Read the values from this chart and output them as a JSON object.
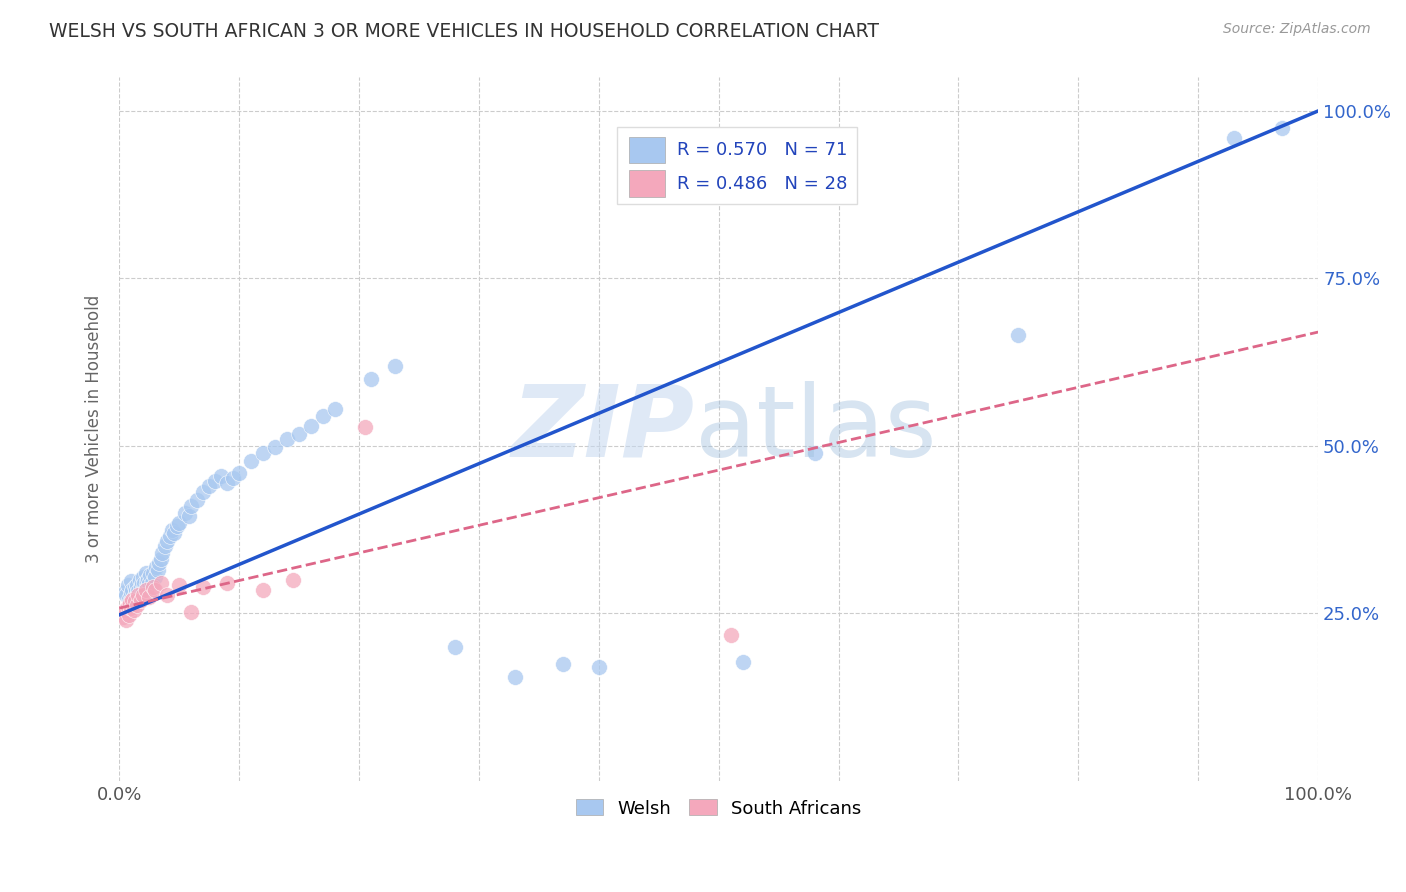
{
  "title": "WELSH VS SOUTH AFRICAN 3 OR MORE VEHICLES IN HOUSEHOLD CORRELATION CHART",
  "source": "Source: ZipAtlas.com",
  "ylabel": "3 or more Vehicles in Household",
  "xlim": [
    0.0,
    1.0
  ],
  "ylim": [
    0.0,
    1.05
  ],
  "grid_color": "#cccccc",
  "background_color": "#ffffff",
  "welsh_color": "#A8C8F0",
  "sa_color": "#F4A8BC",
  "welsh_line_color": "#2255CC",
  "sa_line_color": "#DD6688",
  "welsh_r": 0.57,
  "welsh_n": 71,
  "sa_r": 0.486,
  "sa_n": 28,
  "welsh_x": [
    0.005,
    0.006,
    0.007,
    0.008,
    0.009,
    0.01,
    0.01,
    0.011,
    0.012,
    0.013,
    0.014,
    0.015,
    0.015,
    0.016,
    0.017,
    0.018,
    0.019,
    0.02,
    0.02,
    0.021,
    0.022,
    0.022,
    0.023,
    0.024,
    0.025,
    0.026,
    0.027,
    0.028,
    0.03,
    0.031,
    0.032,
    0.033,
    0.035,
    0.036,
    0.038,
    0.04,
    0.042,
    0.044,
    0.046,
    0.048,
    0.05,
    0.055,
    0.058,
    0.06,
    0.065,
    0.07,
    0.075,
    0.08,
    0.085,
    0.09,
    0.095,
    0.1,
    0.11,
    0.12,
    0.13,
    0.14,
    0.15,
    0.16,
    0.17,
    0.18,
    0.21,
    0.23,
    0.28,
    0.33,
    0.37,
    0.4,
    0.52,
    0.58,
    0.75,
    0.93,
    0.97
  ],
  "welsh_y": [
    0.282,
    0.278,
    0.292,
    0.271,
    0.268,
    0.28,
    0.298,
    0.285,
    0.275,
    0.29,
    0.285,
    0.278,
    0.292,
    0.284,
    0.3,
    0.29,
    0.295,
    0.285,
    0.305,
    0.295,
    0.288,
    0.31,
    0.298,
    0.302,
    0.295,
    0.308,
    0.295,
    0.31,
    0.305,
    0.32,
    0.315,
    0.325,
    0.332,
    0.34,
    0.35,
    0.358,
    0.365,
    0.375,
    0.37,
    0.38,
    0.385,
    0.4,
    0.395,
    0.41,
    0.42,
    0.432,
    0.44,
    0.448,
    0.455,
    0.445,
    0.452,
    0.46,
    0.478,
    0.49,
    0.498,
    0.51,
    0.518,
    0.53,
    0.545,
    0.555,
    0.6,
    0.62,
    0.2,
    0.155,
    0.175,
    0.17,
    0.178,
    0.49,
    0.665,
    0.96,
    0.975
  ],
  "sa_x": [
    0.003,
    0.005,
    0.006,
    0.007,
    0.008,
    0.009,
    0.01,
    0.011,
    0.012,
    0.013,
    0.015,
    0.016,
    0.018,
    0.02,
    0.022,
    0.025,
    0.028,
    0.03,
    0.035,
    0.04,
    0.05,
    0.06,
    0.07,
    0.09,
    0.12,
    0.145,
    0.205,
    0.51
  ],
  "sa_y": [
    0.245,
    0.255,
    0.24,
    0.26,
    0.248,
    0.265,
    0.258,
    0.27,
    0.255,
    0.268,
    0.262,
    0.278,
    0.27,
    0.278,
    0.285,
    0.275,
    0.29,
    0.285,
    0.295,
    0.278,
    0.292,
    0.252,
    0.29,
    0.295,
    0.285,
    0.3,
    0.528,
    0.218
  ],
  "welsh_line_x0": 0.0,
  "welsh_line_y0": 0.248,
  "welsh_line_x1": 1.0,
  "welsh_line_y1": 1.0,
  "sa_line_x0": 0.0,
  "sa_line_y0": 0.258,
  "sa_line_x1": 1.0,
  "sa_line_y1": 0.67
}
